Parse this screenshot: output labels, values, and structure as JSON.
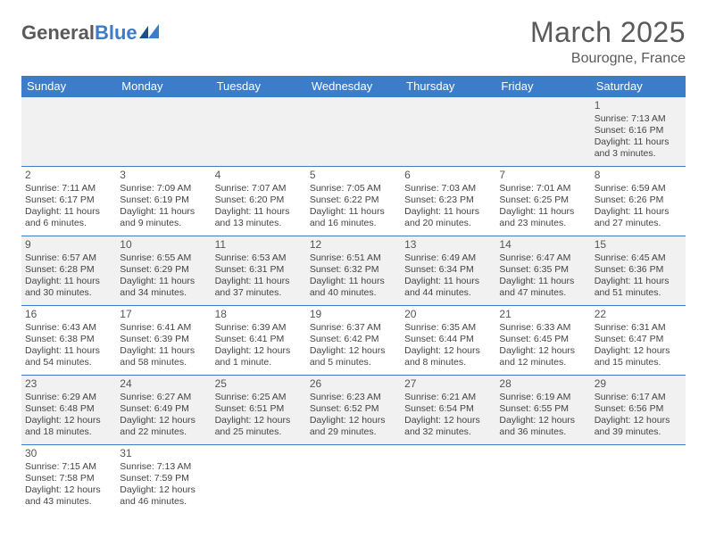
{
  "brand": {
    "general": "General",
    "blue": "Blue"
  },
  "title": "March 2025",
  "subtitle": "Bourogne, France",
  "colors": {
    "header_bg": "#3d7cc9",
    "header_fg": "#ffffff",
    "row_alt_bg": "#f1f1f1",
    "row_bg": "#ffffff",
    "border": "#3d7cc9",
    "text": "#444444",
    "title": "#5a5a5a"
  },
  "day_headers": [
    "Sunday",
    "Monday",
    "Tuesday",
    "Wednesday",
    "Thursday",
    "Friday",
    "Saturday"
  ],
  "weeks": [
    [
      null,
      null,
      null,
      null,
      null,
      null,
      {
        "n": "1",
        "sr": "Sunrise: 7:13 AM",
        "ss": "Sunset: 6:16 PM",
        "d1": "Daylight: 11 hours",
        "d2": "and 3 minutes."
      }
    ],
    [
      {
        "n": "2",
        "sr": "Sunrise: 7:11 AM",
        "ss": "Sunset: 6:17 PM",
        "d1": "Daylight: 11 hours",
        "d2": "and 6 minutes."
      },
      {
        "n": "3",
        "sr": "Sunrise: 7:09 AM",
        "ss": "Sunset: 6:19 PM",
        "d1": "Daylight: 11 hours",
        "d2": "and 9 minutes."
      },
      {
        "n": "4",
        "sr": "Sunrise: 7:07 AM",
        "ss": "Sunset: 6:20 PM",
        "d1": "Daylight: 11 hours",
        "d2": "and 13 minutes."
      },
      {
        "n": "5",
        "sr": "Sunrise: 7:05 AM",
        "ss": "Sunset: 6:22 PM",
        "d1": "Daylight: 11 hours",
        "d2": "and 16 minutes."
      },
      {
        "n": "6",
        "sr": "Sunrise: 7:03 AM",
        "ss": "Sunset: 6:23 PM",
        "d1": "Daylight: 11 hours",
        "d2": "and 20 minutes."
      },
      {
        "n": "7",
        "sr": "Sunrise: 7:01 AM",
        "ss": "Sunset: 6:25 PM",
        "d1": "Daylight: 11 hours",
        "d2": "and 23 minutes."
      },
      {
        "n": "8",
        "sr": "Sunrise: 6:59 AM",
        "ss": "Sunset: 6:26 PM",
        "d1": "Daylight: 11 hours",
        "d2": "and 27 minutes."
      }
    ],
    [
      {
        "n": "9",
        "sr": "Sunrise: 6:57 AM",
        "ss": "Sunset: 6:28 PM",
        "d1": "Daylight: 11 hours",
        "d2": "and 30 minutes."
      },
      {
        "n": "10",
        "sr": "Sunrise: 6:55 AM",
        "ss": "Sunset: 6:29 PM",
        "d1": "Daylight: 11 hours",
        "d2": "and 34 minutes."
      },
      {
        "n": "11",
        "sr": "Sunrise: 6:53 AM",
        "ss": "Sunset: 6:31 PM",
        "d1": "Daylight: 11 hours",
        "d2": "and 37 minutes."
      },
      {
        "n": "12",
        "sr": "Sunrise: 6:51 AM",
        "ss": "Sunset: 6:32 PM",
        "d1": "Daylight: 11 hours",
        "d2": "and 40 minutes."
      },
      {
        "n": "13",
        "sr": "Sunrise: 6:49 AM",
        "ss": "Sunset: 6:34 PM",
        "d1": "Daylight: 11 hours",
        "d2": "and 44 minutes."
      },
      {
        "n": "14",
        "sr": "Sunrise: 6:47 AM",
        "ss": "Sunset: 6:35 PM",
        "d1": "Daylight: 11 hours",
        "d2": "and 47 minutes."
      },
      {
        "n": "15",
        "sr": "Sunrise: 6:45 AM",
        "ss": "Sunset: 6:36 PM",
        "d1": "Daylight: 11 hours",
        "d2": "and 51 minutes."
      }
    ],
    [
      {
        "n": "16",
        "sr": "Sunrise: 6:43 AM",
        "ss": "Sunset: 6:38 PM",
        "d1": "Daylight: 11 hours",
        "d2": "and 54 minutes."
      },
      {
        "n": "17",
        "sr": "Sunrise: 6:41 AM",
        "ss": "Sunset: 6:39 PM",
        "d1": "Daylight: 11 hours",
        "d2": "and 58 minutes."
      },
      {
        "n": "18",
        "sr": "Sunrise: 6:39 AM",
        "ss": "Sunset: 6:41 PM",
        "d1": "Daylight: 12 hours",
        "d2": "and 1 minute."
      },
      {
        "n": "19",
        "sr": "Sunrise: 6:37 AM",
        "ss": "Sunset: 6:42 PM",
        "d1": "Daylight: 12 hours",
        "d2": "and 5 minutes."
      },
      {
        "n": "20",
        "sr": "Sunrise: 6:35 AM",
        "ss": "Sunset: 6:44 PM",
        "d1": "Daylight: 12 hours",
        "d2": "and 8 minutes."
      },
      {
        "n": "21",
        "sr": "Sunrise: 6:33 AM",
        "ss": "Sunset: 6:45 PM",
        "d1": "Daylight: 12 hours",
        "d2": "and 12 minutes."
      },
      {
        "n": "22",
        "sr": "Sunrise: 6:31 AM",
        "ss": "Sunset: 6:47 PM",
        "d1": "Daylight: 12 hours",
        "d2": "and 15 minutes."
      }
    ],
    [
      {
        "n": "23",
        "sr": "Sunrise: 6:29 AM",
        "ss": "Sunset: 6:48 PM",
        "d1": "Daylight: 12 hours",
        "d2": "and 18 minutes."
      },
      {
        "n": "24",
        "sr": "Sunrise: 6:27 AM",
        "ss": "Sunset: 6:49 PM",
        "d1": "Daylight: 12 hours",
        "d2": "and 22 minutes."
      },
      {
        "n": "25",
        "sr": "Sunrise: 6:25 AM",
        "ss": "Sunset: 6:51 PM",
        "d1": "Daylight: 12 hours",
        "d2": "and 25 minutes."
      },
      {
        "n": "26",
        "sr": "Sunrise: 6:23 AM",
        "ss": "Sunset: 6:52 PM",
        "d1": "Daylight: 12 hours",
        "d2": "and 29 minutes."
      },
      {
        "n": "27",
        "sr": "Sunrise: 6:21 AM",
        "ss": "Sunset: 6:54 PM",
        "d1": "Daylight: 12 hours",
        "d2": "and 32 minutes."
      },
      {
        "n": "28",
        "sr": "Sunrise: 6:19 AM",
        "ss": "Sunset: 6:55 PM",
        "d1": "Daylight: 12 hours",
        "d2": "and 36 minutes."
      },
      {
        "n": "29",
        "sr": "Sunrise: 6:17 AM",
        "ss": "Sunset: 6:56 PM",
        "d1": "Daylight: 12 hours",
        "d2": "and 39 minutes."
      }
    ],
    [
      {
        "n": "30",
        "sr": "Sunrise: 7:15 AM",
        "ss": "Sunset: 7:58 PM",
        "d1": "Daylight: 12 hours",
        "d2": "and 43 minutes."
      },
      {
        "n": "31",
        "sr": "Sunrise: 7:13 AM",
        "ss": "Sunset: 7:59 PM",
        "d1": "Daylight: 12 hours",
        "d2": "and 46 minutes."
      },
      null,
      null,
      null,
      null,
      null
    ]
  ]
}
